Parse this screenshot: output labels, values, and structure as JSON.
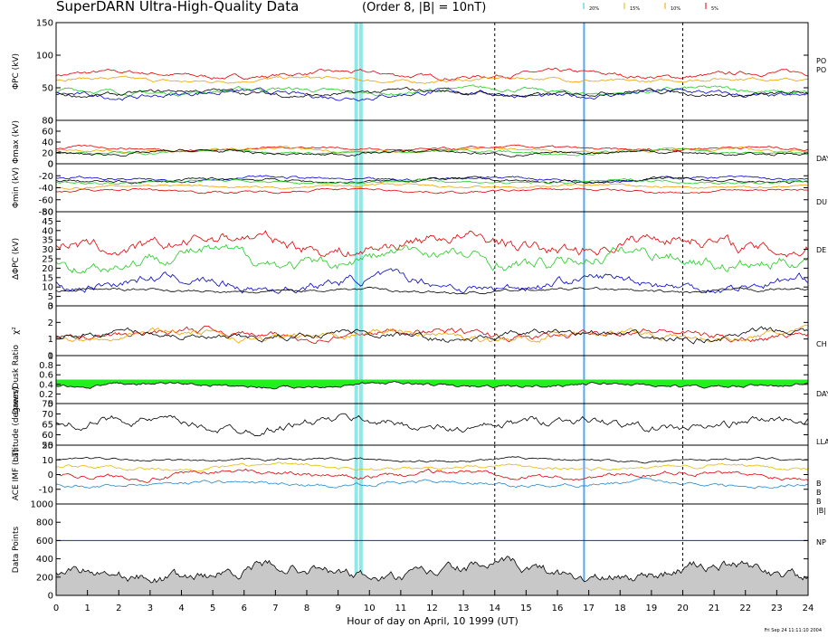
{
  "header": {
    "title": "SuperDARN Ultra-High-Quality Data",
    "subtitle": "(Order 8, |B| = 10nT)",
    "legend": [
      {
        "label": "20%",
        "color": "#22c8e6"
      },
      {
        "label": "15%",
        "color": "#e6b800"
      },
      {
        "label": "10%",
        "color": "#f0a000"
      },
      {
        "label": "5%",
        "color": "#e00000"
      }
    ]
  },
  "footer": {
    "xlabel": "Hour of day on April, 10 1999 (UT)",
    "timestamp": "Fri Sep 24 11:11:10 2004"
  },
  "chart_data": [
    {
      "type": "line",
      "panel": "phi_pc",
      "ylabel": "ΦPC (kV)",
      "yticks": [
        0,
        50,
        100,
        150
      ],
      "ylim": [
        0,
        150
      ],
      "right_labels": [
        "PO",
        "PO"
      ],
      "x": [
        0,
        24
      ],
      "xticks": [
        0,
        1,
        2,
        3,
        4,
        5,
        6,
        7,
        8,
        9,
        10,
        11,
        12,
        13,
        14,
        15,
        16,
        17,
        18,
        19,
        20,
        21,
        22,
        23,
        24
      ],
      "series": [
        {
          "color": "#e00000",
          "mean": 70,
          "amp": 8
        },
        {
          "color": "#f0a000",
          "mean": 62,
          "amp": 6
        },
        {
          "color": "#22cc22",
          "mean": 45,
          "amp": 8
        },
        {
          "color": "#0000cc",
          "mean": 40,
          "amp": 9
        },
        {
          "color": "#000000",
          "mean": 42,
          "amp": 8
        }
      ]
    },
    {
      "type": "line",
      "panel": "phi_max",
      "ylabel": "Φmax (kV)",
      "yticks": [
        0,
        20,
        40,
        60,
        80
      ],
      "ylim": [
        0,
        80
      ],
      "right_labels": [
        "DAY"
      ],
      "series": [
        {
          "color": "#e00000",
          "mean": 28,
          "amp": 6
        },
        {
          "color": "#f0a000",
          "mean": 25,
          "amp": 6
        },
        {
          "color": "#22cc22",
          "mean": 22,
          "amp": 6
        },
        {
          "color": "#000000",
          "mean": 20,
          "amp": 7
        }
      ]
    },
    {
      "type": "line",
      "panel": "phi_min",
      "ylabel": "Φmin (kV)",
      "yticks": [
        -80,
        -60,
        -40,
        -20,
        0
      ],
      "ylim": [
        -80,
        0
      ],
      "right_labels": [
        "DU"
      ],
      "series": [
        {
          "color": "#0000cc",
          "mean": -25,
          "amp": 6
        },
        {
          "color": "#000000",
          "mean": -28,
          "amp": 6
        },
        {
          "color": "#22cc22",
          "mean": -30,
          "amp": 5
        },
        {
          "color": "#f0a000",
          "mean": -38,
          "amp": 5
        },
        {
          "color": "#e00000",
          "mean": -45,
          "amp": 5
        }
      ]
    },
    {
      "type": "line",
      "panel": "delta_phi",
      "ylabel": "ΔΦPC (kV)",
      "yticks": [
        0,
        5,
        10,
        15,
        20,
        25,
        30,
        35,
        40,
        45,
        50
      ],
      "ylim": [
        0,
        50
      ],
      "right_labels": [
        "DE"
      ],
      "series": [
        {
          "color": "#e00000",
          "mean": 33,
          "amp": 8
        },
        {
          "color": "#22cc22",
          "mean": 25,
          "amp": 8
        },
        {
          "color": "#0000cc",
          "mean": 12,
          "amp": 6
        },
        {
          "color": "#000000",
          "mean": 8,
          "amp": 2
        }
      ]
    },
    {
      "type": "line",
      "panel": "chi",
      "ylabel": "χ²",
      "yticks": [
        0,
        1,
        2,
        3
      ],
      "ylim": [
        0,
        3
      ],
      "right_labels": [
        "CH"
      ],
      "series": [
        {
          "color": "#e00000",
          "mean": 1.3,
          "amp": 0.5
        },
        {
          "color": "#f0a000",
          "mean": 1.25,
          "amp": 0.5
        },
        {
          "color": "#000000",
          "mean": 1.2,
          "amp": 0.5
        }
      ]
    },
    {
      "type": "area",
      "panel": "ratio",
      "ylabel": "Dawn/Dusk Ratio",
      "yticks": [
        0.0,
        0.2,
        0.4,
        0.6,
        0.8,
        1.0
      ],
      "ylim": [
        0,
        1
      ],
      "right_labels": [
        "DAY"
      ],
      "baseline": 0.5,
      "series": [
        {
          "color": "#000000",
          "fill": "#22ee22",
          "mean": 0.38,
          "amp": 0.08
        }
      ]
    },
    {
      "type": "line",
      "panel": "latitude",
      "ylabel": "Latitude (degrees)",
      "yticks": [
        55,
        60,
        65,
        70,
        75
      ],
      "ylim": [
        55,
        75
      ],
      "right_labels": [
        "LLA"
      ],
      "series": [
        {
          "color": "#000000",
          "mean": 65,
          "amp": 5
        }
      ]
    },
    {
      "type": "line",
      "panel": "imf",
      "ylabel": "ACE IMF (nT)",
      "yticks": [
        -10,
        0,
        10,
        20
      ],
      "ylim": [
        -20,
        20
      ],
      "right_labels": [
        "B",
        "B",
        "B",
        "|B|"
      ],
      "series": [
        {
          "color": "#000000",
          "mean": 10,
          "amp": 2
        },
        {
          "color": "#e6b800",
          "mean": 5,
          "amp": 3
        },
        {
          "color": "#e00000",
          "mean": 0,
          "amp": 4
        },
        {
          "color": "#2288cc",
          "mean": -6,
          "amp": 3
        }
      ]
    },
    {
      "type": "area",
      "panel": "points",
      "ylabel": "Data Points",
      "yticks": [
        0,
        200,
        400,
        600,
        800,
        1000
      ],
      "ylim": [
        0,
        1000
      ],
      "right_labels": [
        "NP"
      ],
      "threshold": 600,
      "series": [
        {
          "color": "#000000",
          "fill": "#c8c8c8",
          "mean": 250,
          "amp": 150
        }
      ]
    }
  ]
}
